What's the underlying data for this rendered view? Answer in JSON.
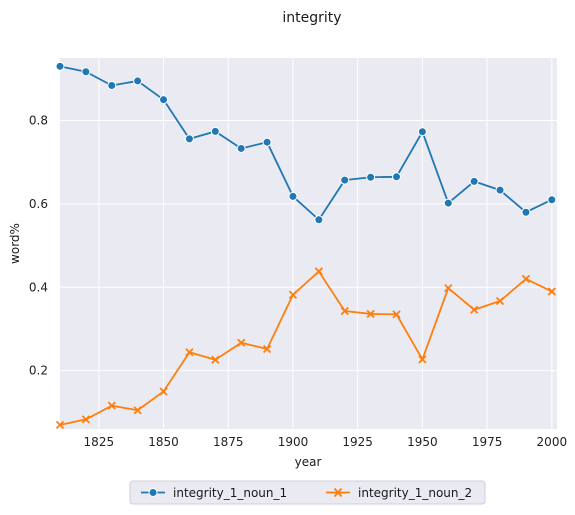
{
  "chart_data": {
    "type": "line",
    "title": "integrity",
    "xlabel": "year",
    "ylabel": "word%",
    "x": [
      1810,
      1820,
      1830,
      1840,
      1850,
      1860,
      1870,
      1880,
      1890,
      1900,
      1910,
      1920,
      1930,
      1940,
      1950,
      1960,
      1970,
      1980,
      1990,
      2000
    ],
    "xlim": [
      1810,
      2002
    ],
    "ylim": [
      0.06,
      0.95
    ],
    "xticks": [
      1825,
      1850,
      1875,
      1900,
      1925,
      1950,
      1975,
      2000
    ],
    "yticks": [
      0.2,
      0.4,
      0.6,
      0.8
    ],
    "xtick_labels": [
      "1825",
      "1850",
      "1875",
      "1900",
      "1925",
      "1950",
      "1975",
      "2000"
    ],
    "ytick_labels": [
      "0.2",
      "0.4",
      "0.6",
      "0.8"
    ],
    "grid": true,
    "legend_position": "bottom-center",
    "series": [
      {
        "name": "integrity_1_noun_1",
        "marker": "circle",
        "color": "#1f77b4",
        "values": [
          0.93,
          0.917,
          0.884,
          0.895,
          0.85,
          0.756,
          0.774,
          0.733,
          0.748,
          0.618,
          0.562,
          0.657,
          0.664,
          0.665,
          0.773,
          0.602,
          0.654,
          0.633,
          0.58,
          0.61
        ]
      },
      {
        "name": "integrity_1_noun_2",
        "marker": "x",
        "color": "#ff7f0e",
        "values": [
          0.07,
          0.083,
          0.116,
          0.105,
          0.15,
          0.244,
          0.226,
          0.267,
          0.252,
          0.382,
          0.438,
          0.343,
          0.336,
          0.335,
          0.227,
          0.398,
          0.346,
          0.367,
          0.42,
          0.39
        ]
      }
    ]
  }
}
